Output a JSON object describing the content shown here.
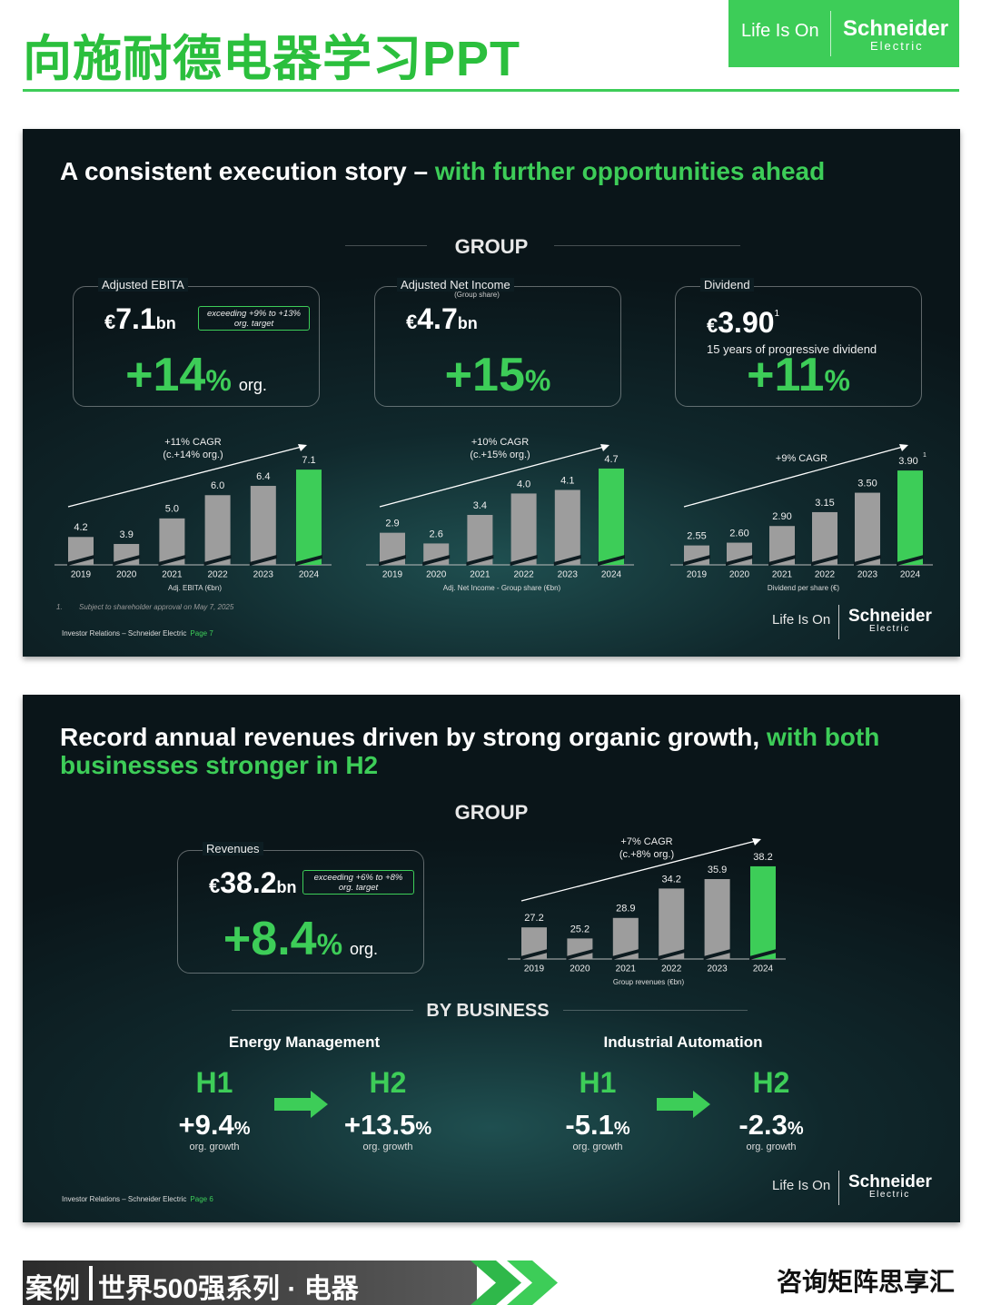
{
  "header": {
    "title": "向施耐德电器学习PPT",
    "logo": {
      "tagline": "Life Is On",
      "brand": "Schneider",
      "sub": "Electric"
    }
  },
  "slides": [
    {
      "title": "A consistent execution story – ",
      "title_highlight": "with further opportunities ahead",
      "section": "GROUP",
      "kpis": [
        {
          "label": "Adjusted EBITA",
          "currency": "€",
          "value": "7.1",
          "unit": "bn",
          "note": [
            "exceeding +9% to +13%",
            "org. target"
          ],
          "growth": "+14",
          "growth_unit": "%",
          "growth_suffix": "org."
        },
        {
          "label": "Adjusted Net Income",
          "sublabel": "(Group share)",
          "currency": "€",
          "value": "4.7",
          "unit": "bn",
          "growth": "+15",
          "growth_unit": "%"
        },
        {
          "label": "Dividend",
          "currency": "€",
          "value": "3.90",
          "superscript": "1",
          "text": "15 years of progressive dividend",
          "growth": "+11",
          "growth_unit": "%"
        }
      ],
      "charts": [
        {
          "type": "bar",
          "cagr": "+11% CAGR",
          "cagr_sub": "(c.+14% org.)",
          "categories": [
            "2019",
            "2020",
            "2021",
            "2022",
            "2023",
            "2024"
          ],
          "values": [
            4.2,
            3.9,
            5.0,
            6.0,
            6.4,
            7.1
          ],
          "value_labels": [
            "4.2",
            "3.9",
            "5.0",
            "6.0",
            "6.4",
            "7.1"
          ],
          "caption": "Adj. EBITA (€bn)",
          "ylim": [
            3,
            7.3
          ],
          "color": "#9d9d9d",
          "highlight_color": "#3dcd58"
        },
        {
          "type": "bar",
          "cagr": "+10% CAGR",
          "cagr_sub": "(c.+15% org.)",
          "categories": [
            "2019",
            "2020",
            "2021",
            "2022",
            "2023",
            "2024"
          ],
          "values": [
            2.9,
            2.6,
            3.4,
            4.0,
            4.1,
            4.7
          ],
          "value_labels": [
            "2.9",
            "2.6",
            "3.4",
            "4.0",
            "4.1",
            "4.7"
          ],
          "caption": "Adj. Net Income - Group share (€bn)",
          "ylim": [
            2,
            4.8
          ],
          "color": "#9d9d9d",
          "highlight_color": "#3dcd58"
        },
        {
          "type": "bar",
          "cagr": "+9% CAGR",
          "categories": [
            "2019",
            "2020",
            "2021",
            "2022",
            "2023",
            "2024"
          ],
          "values": [
            2.55,
            2.6,
            2.9,
            3.15,
            3.5,
            3.9
          ],
          "value_labels": [
            "2.55",
            "2.60",
            "2.90",
            "3.15",
            "3.50",
            "3.90"
          ],
          "last_superscript": "1",
          "caption": "Dividend per share (€)",
          "ylim": [
            2.2,
            4.0
          ],
          "color": "#9d9d9d",
          "highlight_color": "#3dcd58"
        }
      ],
      "footnote": {
        "number": "1.",
        "text": "Subject to shareholder approval on May 7, 2025"
      },
      "footer": {
        "text": "Investor Relations – Schneider Electric",
        "page": "Page 7"
      }
    },
    {
      "title": "Record annual revenues driven by strong organic growth, ",
      "title_highlight": "with both businesses stronger in H2",
      "section": "GROUP",
      "kpis": [
        {
          "label": "Revenues",
          "currency": "€",
          "value": "38.2",
          "unit": "bn",
          "note": [
            "exceeding +6% to +8%",
            "org. target"
          ],
          "growth": "+8.4",
          "growth_unit": "%",
          "growth_suffix": "org."
        }
      ],
      "charts": [
        {
          "type": "bar",
          "cagr": "+7% CAGR",
          "cagr_sub": "(c.+8% org.)",
          "categories": [
            "2019",
            "2020",
            "2021",
            "2022",
            "2023",
            "2024"
          ],
          "values": [
            27.2,
            25.2,
            28.9,
            34.2,
            35.9,
            38.2
          ],
          "caption": "Group revenues (€bn)",
          "ylim": [
            21.5,
            39.5
          ],
          "color": "#9d9d9d",
          "highlight_color": "#3dcd58"
        }
      ],
      "business": {
        "title": "BY BUSINESS",
        "segments": [
          {
            "name": "Energy Management",
            "periods": [
              {
                "label": "H1",
                "value": "+9.4",
                "unit": "%",
                "note": "org. growth"
              },
              {
                "label": "H2",
                "value": "+13.5",
                "unit": "%",
                "note": "org. growth"
              }
            ]
          },
          {
            "name": "Industrial Automation",
            "periods": [
              {
                "label": "H1",
                "value": "-5.1",
                "unit": "%",
                "note": "org. growth"
              },
              {
                "label": "H2",
                "value": "-2.3",
                "unit": "%",
                "note": "org. growth"
              }
            ]
          }
        ]
      },
      "footer": {
        "text": "Investor Relations – Schneider Electric",
        "page": "Page 6"
      }
    }
  ],
  "banner": {
    "tag": "案例",
    "series": "世界500强系列 · 电器",
    "brand": "咨询矩阵思享汇"
  }
}
